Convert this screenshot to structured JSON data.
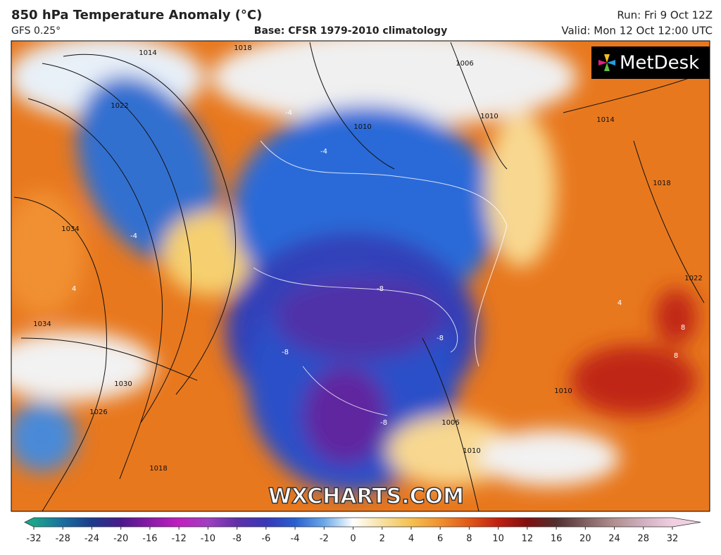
{
  "header": {
    "title": "850 hPa Temperature Anomaly (°C)",
    "model": "GFS 0.25°",
    "base": "Base: CFSR 1979-2010 climatology",
    "run": "Run: Fri 9 Oct 12Z",
    "valid": "Valid: Mon 12 Oct 12:00 UTC"
  },
  "brand": "MetDesk",
  "watermark": "WXCHARTS.COM",
  "contour_labels": [
    "1014",
    "1018",
    "1022",
    "1034",
    "1034",
    "1030",
    "1026",
    "1018",
    "1010",
    "1006",
    "1010",
    "1014",
    "1018",
    "1022",
    "1010",
    "1006",
    "1010",
    "-4",
    "-4",
    "-4",
    "-8",
    "-8",
    "-8",
    "-8",
    "4",
    "4",
    "8",
    "8"
  ],
  "colorbar": {
    "ticks": [
      -32,
      -28,
      -24,
      -20,
      -16,
      -12,
      -10,
      -8,
      -6,
      -4,
      -2,
      0,
      2,
      4,
      6,
      8,
      10,
      12,
      16,
      20,
      24,
      28,
      32
    ],
    "colors": [
      "#1aa58a",
      "#1a6ea0",
      "#1c3c8c",
      "#4a1a8a",
      "#8a1aa8",
      "#c020c0",
      "#a040c0",
      "#6030a8",
      "#3838b8",
      "#2860d0",
      "#6aa8e8",
      "#ffffff",
      "#f8e0a0",
      "#f5c050",
      "#f09030",
      "#e05818",
      "#c02010",
      "#801010",
      "#503030",
      "#806060",
      "#b09090",
      "#d0b0c0",
      "#f0d0e0"
    ]
  }
}
